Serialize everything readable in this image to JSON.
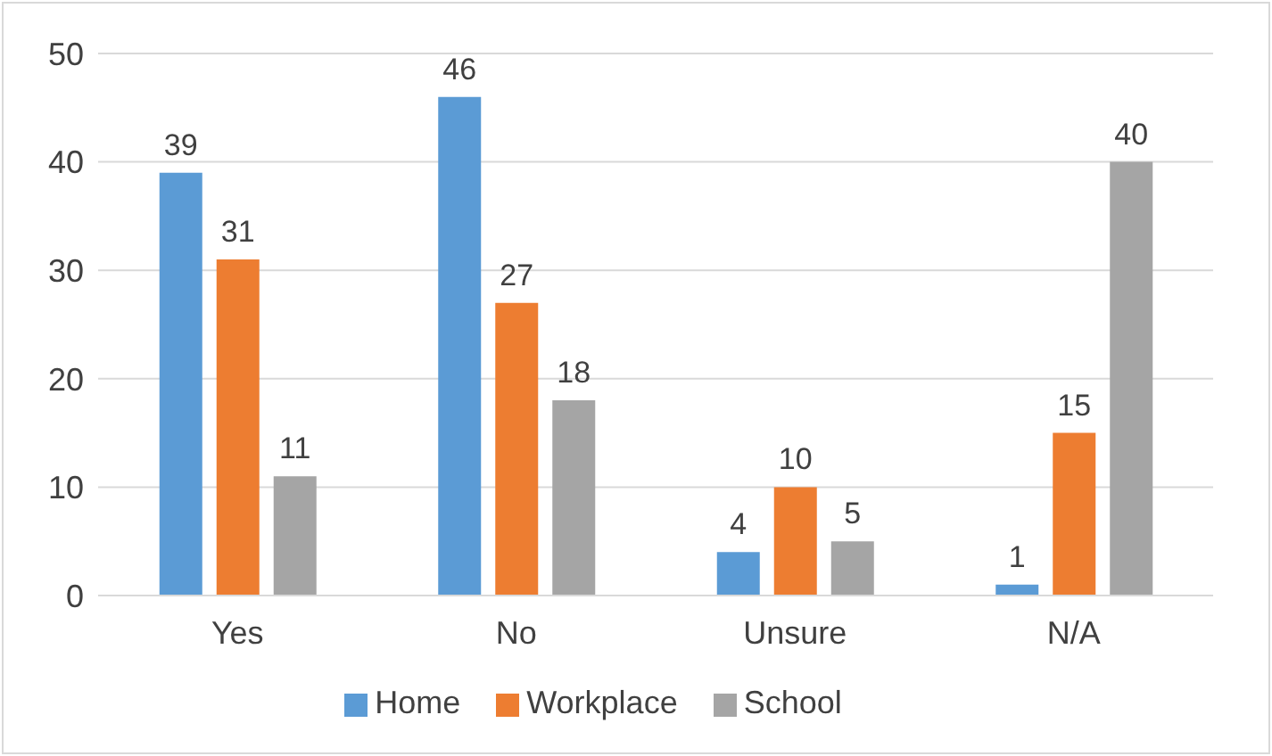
{
  "chart_data": {
    "type": "bar",
    "categories": [
      "Yes",
      "No",
      "Unsure",
      "N/A"
    ],
    "series": [
      {
        "name": "Home",
        "color": "#5b9bd5",
        "values": [
          39,
          46,
          4,
          1
        ]
      },
      {
        "name": "Workplace",
        "color": "#ed7d31",
        "values": [
          31,
          27,
          10,
          15
        ]
      },
      {
        "name": "School",
        "color": "#a5a5a5",
        "values": [
          11,
          18,
          5,
          40
        ]
      }
    ],
    "ylim": [
      0,
      50
    ],
    "yticks": [
      0,
      10,
      20,
      30,
      40,
      50
    ],
    "grid": "y",
    "legend": "bottom",
    "data_labels": true
  }
}
